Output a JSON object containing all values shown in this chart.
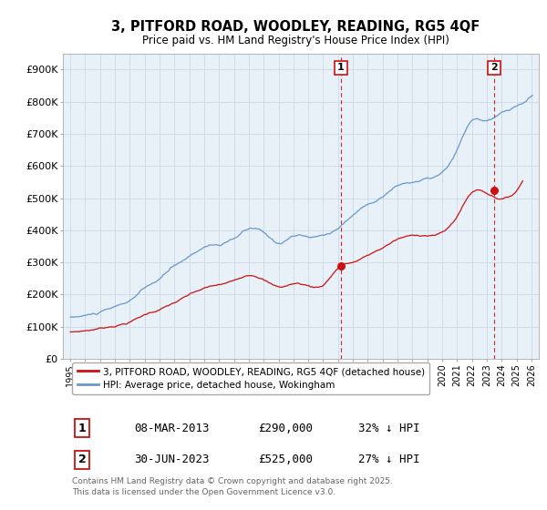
{
  "title": "3, PITFORD ROAD, WOODLEY, READING, RG5 4QF",
  "subtitle": "Price paid vs. HM Land Registry's House Price Index (HPI)",
  "legend_label_red": "3, PITFORD ROAD, WOODLEY, READING, RG5 4QF (detached house)",
  "legend_label_blue": "HPI: Average price, detached house, Wokingham",
  "footer": "Contains HM Land Registry data © Crown copyright and database right 2025.\nThis data is licensed under the Open Government Licence v3.0.",
  "point1_label": "1",
  "point1_date": "08-MAR-2013",
  "point1_price": "£290,000",
  "point1_hpi": "32% ↓ HPI",
  "point2_label": "2",
  "point2_date": "30-JUN-2023",
  "point2_price": "£525,000",
  "point2_hpi": "27% ↓ HPI",
  "ylim": [
    0,
    950000
  ],
  "ytick_vals": [
    0,
    100000,
    200000,
    300000,
    400000,
    500000,
    600000,
    700000,
    800000,
    900000
  ],
  "ytick_labels": [
    "£0",
    "£100K",
    "£200K",
    "£300K",
    "£400K",
    "£500K",
    "£600K",
    "£700K",
    "£800K",
    "£900K"
  ],
  "hpi_color": "#6699cc",
  "price_color": "#cc1111",
  "vline_color": "#cc1111",
  "bg_color": "#ffffff",
  "grid_color": "#ccd9e8",
  "point1_x": 2013.19,
  "point2_x": 2023.5,
  "point1_y": 290000,
  "point2_y": 525000,
  "xlim_left": 1994.5,
  "xlim_right": 2026.5,
  "xtick_years": [
    1995,
    1996,
    1997,
    1998,
    1999,
    2000,
    2001,
    2002,
    2003,
    2004,
    2005,
    2006,
    2007,
    2008,
    2009,
    2010,
    2011,
    2012,
    2013,
    2014,
    2015,
    2016,
    2017,
    2018,
    2019,
    2020,
    2021,
    2022,
    2023,
    2024,
    2025,
    2026
  ]
}
